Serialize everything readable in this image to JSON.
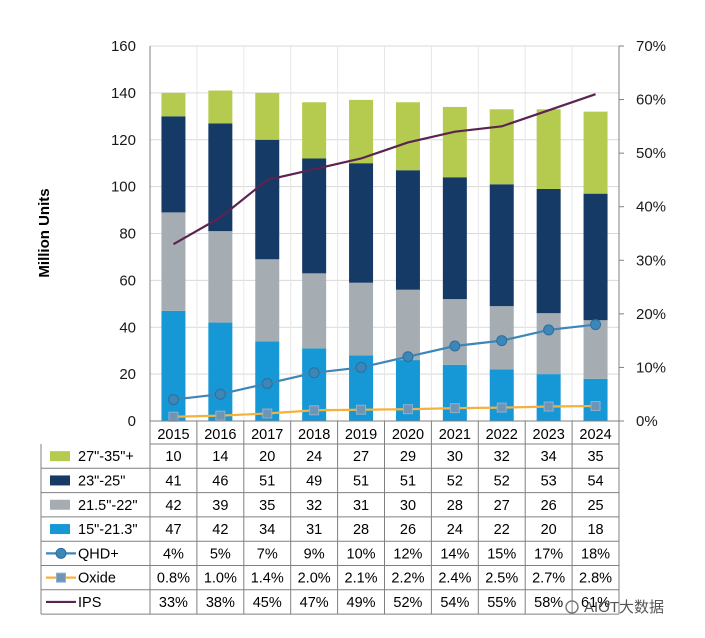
{
  "chart_data": {
    "type": "bar",
    "stacked": true,
    "title": "",
    "xlabel": "",
    "ylabel": "Million Units",
    "ylim": [
      0,
      160
    ],
    "yticks": [
      0,
      20,
      40,
      60,
      80,
      100,
      120,
      140,
      160
    ],
    "y2lim": [
      0,
      70
    ],
    "y2ticks": [
      "0%",
      "10%",
      "20%",
      "30%",
      "40%",
      "50%",
      "60%",
      "70%"
    ],
    "grid": true,
    "legend": "table-bottom",
    "categories": [
      "2015",
      "2016",
      "2017",
      "2018",
      "2019",
      "2020",
      "2021",
      "2022",
      "2023",
      "2024"
    ],
    "series": [
      {
        "name": "27\"-35\"+",
        "kind": "bar",
        "color": "#b5cb4f",
        "values": [
          10,
          14,
          20,
          24,
          27,
          29,
          30,
          32,
          34,
          35
        ],
        "labels": [
          "10",
          "14",
          "20",
          "24",
          "27",
          "29",
          "30",
          "32",
          "34",
          "35"
        ]
      },
      {
        "name": "23\"-25\"",
        "kind": "bar",
        "color": "#163a66",
        "values": [
          41,
          46,
          51,
          49,
          51,
          51,
          52,
          52,
          53,
          54
        ],
        "labels": [
          "41",
          "46",
          "51",
          "49",
          "51",
          "51",
          "52",
          "52",
          "53",
          "54"
        ]
      },
      {
        "name": "21.5\"-22\"",
        "kind": "bar",
        "color": "#a5adb3",
        "values": [
          42,
          39,
          35,
          32,
          31,
          30,
          28,
          27,
          26,
          25
        ],
        "labels": [
          "42",
          "39",
          "35",
          "32",
          "31",
          "30",
          "28",
          "27",
          "26",
          "25"
        ]
      },
      {
        "name": "15\"-21.3\"",
        "kind": "bar",
        "color": "#1598d5",
        "values": [
          47,
          42,
          34,
          31,
          28,
          26,
          24,
          22,
          20,
          18
        ],
        "labels": [
          "47",
          "42",
          "34",
          "31",
          "28",
          "26",
          "24",
          "22",
          "20",
          "18"
        ]
      },
      {
        "name": "QHD+",
        "kind": "line",
        "axis": "right",
        "color": "#3d86b8",
        "marker": "circle",
        "values": [
          4,
          5,
          7,
          9,
          10,
          12,
          14,
          15,
          17,
          18
        ],
        "labels": [
          "4%",
          "5%",
          "7%",
          "9%",
          "10%",
          "12%",
          "14%",
          "15%",
          "17%",
          "18%"
        ]
      },
      {
        "name": "Oxide",
        "kind": "line",
        "axis": "right",
        "color": "#f5b13d",
        "marker": "square",
        "values": [
          0.8,
          1.0,
          1.4,
          2.0,
          2.1,
          2.2,
          2.4,
          2.5,
          2.7,
          2.8
        ],
        "labels": [
          "0.8%",
          "1.0%",
          "1.4%",
          "2.0%",
          "2.1%",
          "2.2%",
          "2.4%",
          "2.5%",
          "2.7%",
          "2.8%"
        ]
      },
      {
        "name": "IPS",
        "kind": "line",
        "axis": "right",
        "color": "#5b2450",
        "marker": "none",
        "values": [
          33,
          38,
          45,
          47,
          49,
          52,
          54,
          55,
          58,
          61
        ],
        "labels": [
          "33%",
          "38%",
          "45%",
          "47%",
          "49%",
          "52%",
          "54%",
          "55%",
          "58%",
          "61%"
        ]
      }
    ]
  },
  "watermark": "AIOT大数据"
}
